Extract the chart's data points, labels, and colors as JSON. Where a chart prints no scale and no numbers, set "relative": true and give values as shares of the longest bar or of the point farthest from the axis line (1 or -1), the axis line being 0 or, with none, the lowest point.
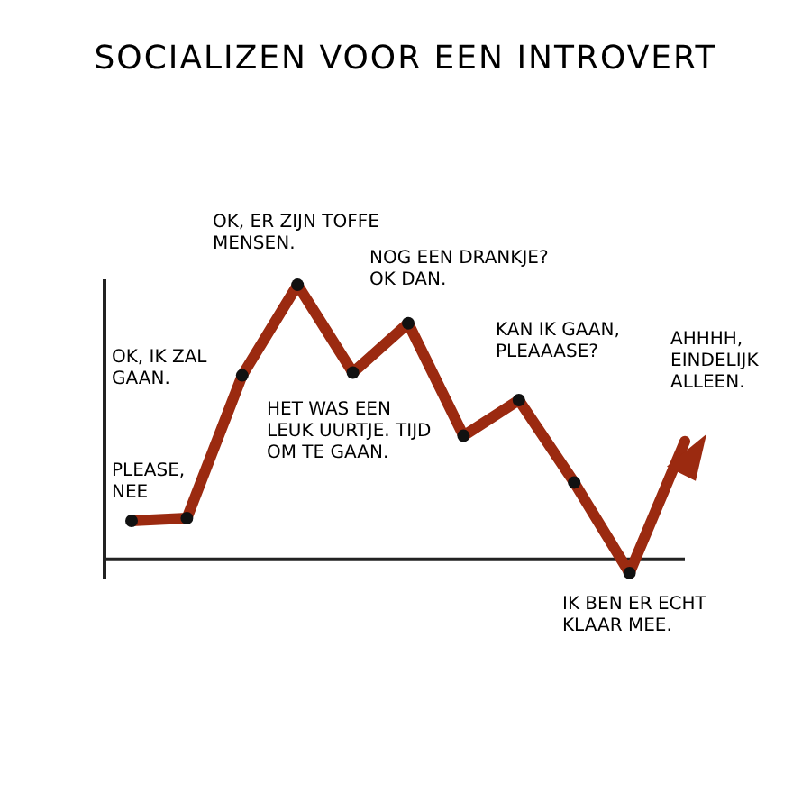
{
  "chart_data": {
    "type": "line",
    "title": "SOCIALIZEN VOOR EEN INTROVERT",
    "relative": true,
    "categories": [
      null,
      null,
      null,
      null,
      null,
      null,
      null,
      null,
      null,
      null,
      null
    ],
    "series": [
      {
        "color": "#9b2a10",
        "values": [
          0.14,
          0.15,
          0.67,
          1,
          0.68,
          0.86,
          0.45,
          0.58,
          0.28,
          -0.05,
          0.43
        ]
      }
    ],
    "marker": "circle",
    "annotations": [
      "PLEASE, NEE",
      "OK, IK ZAL GAAN.",
      "OK, ER ZIJN TOFFE MENSEN.",
      "NOG EEN DRANKJE? OK DAN.",
      "HET WAS EEN LEUK UURTJE. TIJD OM TE GAAN.",
      "KAN IK GAAN, PLEAAASE?",
      "IK BEN ER ECHT KLAAR MEE.",
      "AHHHH, EINDELIJK ALLEEN."
    ],
    "grid": false,
    "legend": false
  }
}
